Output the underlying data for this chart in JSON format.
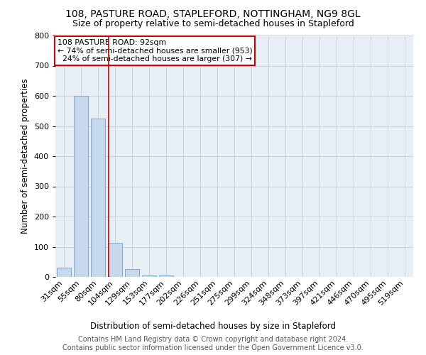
{
  "title_line1": "108, PASTURE ROAD, STAPLEFORD, NOTTINGHAM, NG9 8GL",
  "title_line2": "Size of property relative to semi-detached houses in Stapleford",
  "xlabel": "Distribution of semi-detached houses by size in Stapleford",
  "ylabel": "Number of semi-detached properties",
  "footnote": "Contains HM Land Registry data © Crown copyright and database right 2024.\nContains public sector information licensed under the Open Government Licence v3.0.",
  "annotation_line1": "108 PASTURE ROAD: 92sqm",
  "annotation_line2": "← 74% of semi-detached houses are smaller (953)",
  "annotation_line3": "  24% of semi-detached houses are larger (307) →",
  "property_size_sqm": 92,
  "categories": [
    "31sqm",
    "55sqm",
    "80sqm",
    "104sqm",
    "129sqm",
    "153sqm",
    "177sqm",
    "202sqm",
    "226sqm",
    "251sqm",
    "275sqm",
    "299sqm",
    "324sqm",
    "348sqm",
    "373sqm",
    "397sqm",
    "421sqm",
    "446sqm",
    "470sqm",
    "495sqm",
    "519sqm"
  ],
  "values": [
    30,
    600,
    525,
    113,
    25,
    5,
    5,
    0,
    0,
    0,
    0,
    0,
    0,
    0,
    0,
    0,
    0,
    0,
    0,
    0,
    0
  ],
  "bar_color": "#c8d9ee",
  "bar_edge_color": "#7aaccf",
  "grid_color": "#cccccc",
  "annotation_box_color": "#cc0000",
  "vline_color": "#cc0000",
  "ylim": [
    0,
    800
  ],
  "yticks": [
    0,
    100,
    200,
    300,
    400,
    500,
    600,
    700,
    800
  ],
  "bg_color": "#e8eef5",
  "title_fontsize": 10,
  "subtitle_fontsize": 9,
  "label_fontsize": 8.5,
  "tick_fontsize": 8,
  "footnote_fontsize": 7
}
